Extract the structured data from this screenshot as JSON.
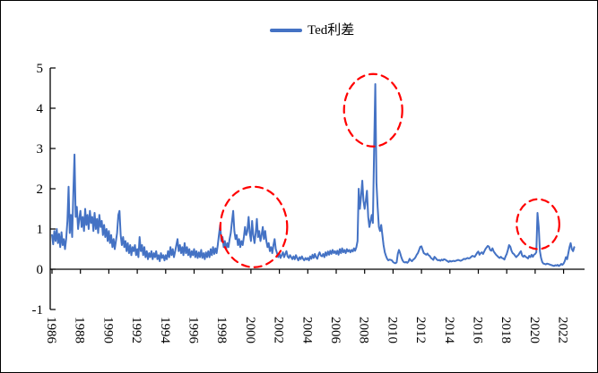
{
  "legend": {
    "label": "Ted利差"
  },
  "colors": {
    "line": "#4472C4",
    "annotation": "#FF0000",
    "axis": "#000000",
    "background": "#FFFFFF"
  },
  "chart_data": {
    "type": "line",
    "title": "",
    "series_name": "Ted利差",
    "x_start_year": 1986,
    "frequency": "monthly",
    "xlim": [
      1986,
      2023.2
    ],
    "ylim": [
      -1,
      5
    ],
    "grid": false,
    "legend_position": "top-center",
    "y_ticks": [
      5,
      4,
      3,
      2,
      1,
      0,
      -1
    ],
    "x_tick_years": [
      1986,
      1988,
      1990,
      1992,
      1994,
      1996,
      1998,
      2000,
      2002,
      2004,
      2006,
      2008,
      2010,
      2012,
      2014,
      2016,
      2018,
      2020,
      2022
    ],
    "values": [
      0.85,
      0.62,
      0.95,
      0.7,
      1.0,
      0.65,
      0.88,
      0.55,
      0.92,
      0.6,
      0.75,
      0.5,
      0.75,
      1.2,
      2.05,
      0.9,
      1.35,
      0.8,
      1.9,
      2.85,
      1.3,
      1.55,
      1.0,
      1.25,
      1.45,
      1.05,
      1.3,
      0.95,
      1.5,
      1.1,
      1.35,
      1.0,
      1.45,
      1.15,
      1.3,
      0.95,
      1.4,
      1.0,
      1.25,
      0.9,
      1.35,
      1.05,
      1.2,
      0.85,
      1.1,
      0.8,
      1.0,
      0.7,
      0.95,
      0.65,
      0.85,
      0.55,
      0.75,
      0.5,
      0.7,
      0.9,
      1.35,
      1.45,
      0.85,
      0.6,
      0.8,
      0.55,
      0.7,
      0.45,
      0.65,
      0.4,
      0.6,
      0.35,
      0.55,
      0.45,
      0.6,
      0.35,
      0.5,
      0.3,
      0.8,
      0.45,
      0.6,
      0.35,
      0.55,
      0.3,
      0.45,
      0.25,
      0.4,
      0.3,
      0.45,
      0.25,
      0.4,
      0.3,
      0.45,
      0.25,
      0.35,
      0.2,
      0.4,
      0.28,
      0.35,
      0.22,
      0.35,
      0.25,
      0.45,
      0.3,
      0.55,
      0.35,
      0.5,
      0.3,
      0.45,
      0.6,
      0.75,
      0.45,
      0.6,
      0.4,
      0.55,
      0.35,
      0.65,
      0.4,
      0.55,
      0.35,
      0.5,
      0.3,
      0.45,
      0.35,
      0.5,
      0.3,
      0.45,
      0.28,
      0.42,
      0.3,
      0.48,
      0.28,
      0.4,
      0.25,
      0.42,
      0.3,
      0.45,
      0.3,
      0.5,
      0.35,
      0.55,
      0.38,
      0.52,
      0.4,
      0.6,
      0.85,
      1.1,
      0.7,
      0.8,
      0.55,
      0.7,
      0.5,
      0.65,
      0.55,
      0.75,
      0.9,
      1.2,
      1.45,
      0.95,
      0.75,
      0.85,
      0.6,
      0.75,
      0.55,
      0.7,
      0.6,
      0.8,
      1.05,
      0.85,
      0.95,
      1.3,
      0.9,
      0.7,
      1.2,
      0.85,
      0.65,
      0.9,
      1.25,
      0.8,
      0.95,
      0.7,
      0.85,
      1.05,
      0.75,
      0.95,
      0.7,
      0.55,
      0.65,
      0.45,
      0.55,
      0.4,
      0.6,
      0.75,
      0.5,
      0.4,
      0.3,
      0.4,
      0.28,
      0.35,
      0.42,
      0.3,
      0.38,
      0.45,
      0.32,
      0.28,
      0.35,
      0.3,
      0.25,
      0.32,
      0.25,
      0.35,
      0.28,
      0.22,
      0.3,
      0.25,
      0.32,
      0.26,
      0.22,
      0.28,
      0.24,
      0.28,
      0.22,
      0.32,
      0.26,
      0.36,
      0.28,
      0.38,
      0.3,
      0.26,
      0.36,
      0.42,
      0.34,
      0.32,
      0.38,
      0.3,
      0.42,
      0.34,
      0.44,
      0.36,
      0.46,
      0.38,
      0.48,
      0.4,
      0.45,
      0.38,
      0.46,
      0.36,
      0.5,
      0.4,
      0.52,
      0.42,
      0.48,
      0.4,
      0.5,
      0.44,
      0.48,
      0.42,
      0.48,
      0.44,
      0.52,
      0.46,
      0.55,
      0.7,
      2.0,
      1.5,
      1.8,
      2.2,
      1.7,
      1.5,
      1.7,
      1.95,
      1.3,
      1.05,
      1.2,
      1.35,
      1.15,
      3.0,
      4.6,
      2.15,
      1.55,
      1.05,
      0.95,
      1.1,
      0.85,
      0.6,
      0.42,
      0.33,
      0.26,
      0.22,
      0.24,
      0.23,
      0.22,
      0.18,
      0.16,
      0.15,
      0.17,
      0.38,
      0.48,
      0.4,
      0.3,
      0.22,
      0.18,
      0.17,
      0.18,
      0.16,
      0.19,
      0.26,
      0.22,
      0.2,
      0.24,
      0.26,
      0.3,
      0.36,
      0.4,
      0.48,
      0.56,
      0.57,
      0.48,
      0.4,
      0.38,
      0.36,
      0.39,
      0.35,
      0.33,
      0.28,
      0.26,
      0.23,
      0.31,
      0.28,
      0.24,
      0.22,
      0.23,
      0.21,
      0.24,
      0.22,
      0.25,
      0.24,
      0.22,
      0.2,
      0.18,
      0.21,
      0.19,
      0.2,
      0.21,
      0.2,
      0.21,
      0.22,
      0.23,
      0.22,
      0.21,
      0.22,
      0.24,
      0.26,
      0.25,
      0.27,
      0.28,
      0.27,
      0.28,
      0.31,
      0.33,
      0.32,
      0.31,
      0.36,
      0.41,
      0.44,
      0.36,
      0.4,
      0.42,
      0.38,
      0.44,
      0.5,
      0.54,
      0.58,
      0.56,
      0.48,
      0.46,
      0.52,
      0.44,
      0.4,
      0.36,
      0.33,
      0.3,
      0.28,
      0.31,
      0.28,
      0.27,
      0.24,
      0.32,
      0.38,
      0.48,
      0.6,
      0.56,
      0.46,
      0.4,
      0.38,
      0.34,
      0.3,
      0.33,
      0.36,
      0.41,
      0.45,
      0.34,
      0.31,
      0.34,
      0.31,
      0.29,
      0.27,
      0.33,
      0.3,
      0.36,
      0.31,
      0.36,
      0.38,
      0.42,
      1.4,
      1.05,
      0.45,
      0.28,
      0.18,
      0.14,
      0.13,
      0.12,
      0.14,
      0.13,
      0.12,
      0.11,
      0.1,
      0.09,
      0.08,
      0.1,
      0.09,
      0.11,
      0.08,
      0.1,
      0.13,
      0.11,
      0.14,
      0.2,
      0.3,
      0.25,
      0.4,
      0.55,
      0.65,
      0.5,
      0.45,
      0.55
    ],
    "annotations": [
      {
        "shape": "dashed-ellipse",
        "cx_year": 2000.2,
        "cy_value": 1.05,
        "rx_years": 2.35,
        "ry_values": 1.0
      },
      {
        "shape": "dashed-ellipse",
        "cx_year": 2008.6,
        "cy_value": 3.95,
        "rx_years": 2.05,
        "ry_values": 0.9
      },
      {
        "shape": "dashed-ellipse",
        "cx_year": 2020.2,
        "cy_value": 1.12,
        "rx_years": 1.5,
        "ry_values": 0.62
      }
    ]
  }
}
